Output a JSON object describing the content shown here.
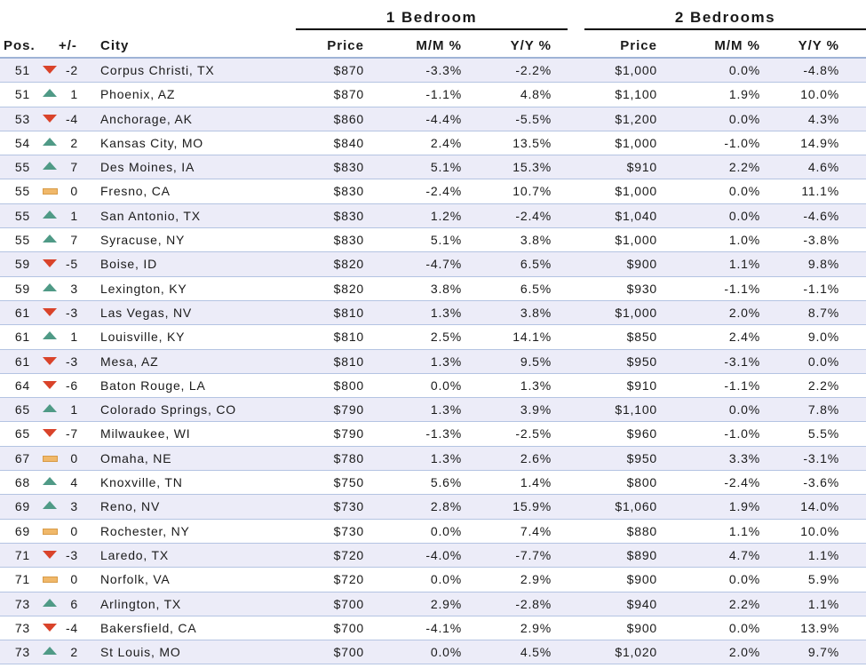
{
  "groups": {
    "one_bedroom": "1 Bedroom",
    "two_bedrooms": "2 Bedrooms"
  },
  "headers": {
    "pos": "Pos.",
    "change": "+/-",
    "city": "City",
    "price1": "Price",
    "mm1": "M/M %",
    "yy1": "Y/Y %",
    "price2": "Price",
    "mm2": "M/M %",
    "yy2": "Y/Y %"
  },
  "colors": {
    "down": "#d9432a",
    "up": "#4f9a86",
    "flat": "#f0b86a"
  },
  "rows": [
    {
      "pos": "51",
      "dir": "down",
      "change": "-2",
      "city": "Corpus Christi, TX",
      "price1": "$870",
      "mm1": "-3.3%",
      "yy1": "-2.2%",
      "price2": "$1,000",
      "mm2": "0.0%",
      "yy2": "-4.8%"
    },
    {
      "pos": "51",
      "dir": "up",
      "change": "1",
      "city": "Phoenix, AZ",
      "price1": "$870",
      "mm1": "-1.1%",
      "yy1": "4.8%",
      "price2": "$1,100",
      "mm2": "1.9%",
      "yy2": "10.0%"
    },
    {
      "pos": "53",
      "dir": "down",
      "change": "-4",
      "city": "Anchorage, AK",
      "price1": "$860",
      "mm1": "-4.4%",
      "yy1": "-5.5%",
      "price2": "$1,200",
      "mm2": "0.0%",
      "yy2": "4.3%"
    },
    {
      "pos": "54",
      "dir": "up",
      "change": "2",
      "city": "Kansas City, MO",
      "price1": "$840",
      "mm1": "2.4%",
      "yy1": "13.5%",
      "price2": "$1,000",
      "mm2": "-1.0%",
      "yy2": "14.9%"
    },
    {
      "pos": "55",
      "dir": "up",
      "change": "7",
      "city": "Des Moines, IA",
      "price1": "$830",
      "mm1": "5.1%",
      "yy1": "15.3%",
      "price2": "$910",
      "mm2": "2.2%",
      "yy2": "4.6%"
    },
    {
      "pos": "55",
      "dir": "flat",
      "change": "0",
      "city": "Fresno, CA",
      "price1": "$830",
      "mm1": "-2.4%",
      "yy1": "10.7%",
      "price2": "$1,000",
      "mm2": "0.0%",
      "yy2": "11.1%"
    },
    {
      "pos": "55",
      "dir": "up",
      "change": "1",
      "city": "San Antonio, TX",
      "price1": "$830",
      "mm1": "1.2%",
      "yy1": "-2.4%",
      "price2": "$1,040",
      "mm2": "0.0%",
      "yy2": "-4.6%"
    },
    {
      "pos": "55",
      "dir": "up",
      "change": "7",
      "city": "Syracuse, NY",
      "price1": "$830",
      "mm1": "5.1%",
      "yy1": "3.8%",
      "price2": "$1,000",
      "mm2": "1.0%",
      "yy2": "-3.8%"
    },
    {
      "pos": "59",
      "dir": "down",
      "change": "-5",
      "city": "Boise, ID",
      "price1": "$820",
      "mm1": "-4.7%",
      "yy1": "6.5%",
      "price2": "$900",
      "mm2": "1.1%",
      "yy2": "9.8%"
    },
    {
      "pos": "59",
      "dir": "up",
      "change": "3",
      "city": "Lexington, KY",
      "price1": "$820",
      "mm1": "3.8%",
      "yy1": "6.5%",
      "price2": "$930",
      "mm2": "-1.1%",
      "yy2": "-1.1%"
    },
    {
      "pos": "61",
      "dir": "down",
      "change": "-3",
      "city": "Las Vegas, NV",
      "price1": "$810",
      "mm1": "1.3%",
      "yy1": "3.8%",
      "price2": "$1,000",
      "mm2": "2.0%",
      "yy2": "8.7%"
    },
    {
      "pos": "61",
      "dir": "up",
      "change": "1",
      "city": "Louisville, KY",
      "price1": "$810",
      "mm1": "2.5%",
      "yy1": "14.1%",
      "price2": "$850",
      "mm2": "2.4%",
      "yy2": "9.0%"
    },
    {
      "pos": "61",
      "dir": "down",
      "change": "-3",
      "city": "Mesa, AZ",
      "price1": "$810",
      "mm1": "1.3%",
      "yy1": "9.5%",
      "price2": "$950",
      "mm2": "-3.1%",
      "yy2": "0.0%"
    },
    {
      "pos": "64",
      "dir": "down",
      "change": "-6",
      "city": "Baton Rouge, LA",
      "price1": "$800",
      "mm1": "0.0%",
      "yy1": "1.3%",
      "price2": "$910",
      "mm2": "-1.1%",
      "yy2": "2.2%"
    },
    {
      "pos": "65",
      "dir": "up",
      "change": "1",
      "city": "Colorado Springs, CO",
      "price1": "$790",
      "mm1": "1.3%",
      "yy1": "3.9%",
      "price2": "$1,100",
      "mm2": "0.0%",
      "yy2": "7.8%"
    },
    {
      "pos": "65",
      "dir": "down",
      "change": "-7",
      "city": "Milwaukee, WI",
      "price1": "$790",
      "mm1": "-1.3%",
      "yy1": "-2.5%",
      "price2": "$960",
      "mm2": "-1.0%",
      "yy2": "5.5%"
    },
    {
      "pos": "67",
      "dir": "flat",
      "change": "0",
      "city": "Omaha, NE",
      "price1": "$780",
      "mm1": "1.3%",
      "yy1": "2.6%",
      "price2": "$950",
      "mm2": "3.3%",
      "yy2": "-3.1%"
    },
    {
      "pos": "68",
      "dir": "up",
      "change": "4",
      "city": "Knoxville, TN",
      "price1": "$750",
      "mm1": "5.6%",
      "yy1": "1.4%",
      "price2": "$800",
      "mm2": "-2.4%",
      "yy2": "-3.6%"
    },
    {
      "pos": "69",
      "dir": "up",
      "change": "3",
      "city": "Reno, NV",
      "price1": "$730",
      "mm1": "2.8%",
      "yy1": "15.9%",
      "price2": "$1,060",
      "mm2": "1.9%",
      "yy2": "14.0%"
    },
    {
      "pos": "69",
      "dir": "flat",
      "change": "0",
      "city": "Rochester, NY",
      "price1": "$730",
      "mm1": "0.0%",
      "yy1": "7.4%",
      "price2": "$880",
      "mm2": "1.1%",
      "yy2": "10.0%"
    },
    {
      "pos": "71",
      "dir": "down",
      "change": "-3",
      "city": "Laredo, TX",
      "price1": "$720",
      "mm1": "-4.0%",
      "yy1": "-7.7%",
      "price2": "$890",
      "mm2": "4.7%",
      "yy2": "1.1%"
    },
    {
      "pos": "71",
      "dir": "flat",
      "change": "0",
      "city": "Norfolk, VA",
      "price1": "$720",
      "mm1": "0.0%",
      "yy1": "2.9%",
      "price2": "$900",
      "mm2": "0.0%",
      "yy2": "5.9%"
    },
    {
      "pos": "73",
      "dir": "up",
      "change": "6",
      "city": "Arlington, TX",
      "price1": "$700",
      "mm1": "2.9%",
      "yy1": "-2.8%",
      "price2": "$940",
      "mm2": "2.2%",
      "yy2": "1.1%"
    },
    {
      "pos": "73",
      "dir": "down",
      "change": "-4",
      "city": "Bakersfield, CA",
      "price1": "$700",
      "mm1": "-4.1%",
      "yy1": "2.9%",
      "price2": "$900",
      "mm2": "0.0%",
      "yy2": "13.9%"
    },
    {
      "pos": "73",
      "dir": "up",
      "change": "2",
      "city": "St Louis, MO",
      "price1": "$700",
      "mm1": "0.0%",
      "yy1": "4.5%",
      "price2": "$1,020",
      "mm2": "2.0%",
      "yy2": "9.7%"
    }
  ]
}
